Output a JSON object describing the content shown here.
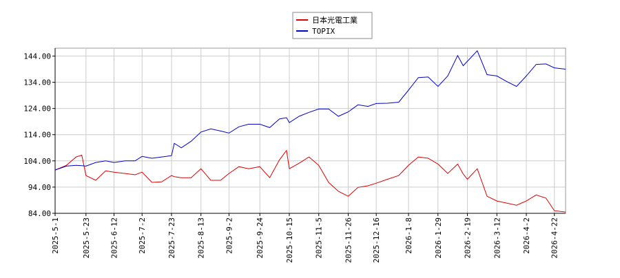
{
  "chart_data": {
    "type": "line",
    "x": [
      "2025-5-1",
      "2025-5-9",
      "2025-5-16",
      "2025-5-20",
      "2025-5-23",
      "2025-5-30",
      "2025-6-6",
      "2025-6-12",
      "2025-6-20",
      "2025-6-27",
      "2025-7-2",
      "2025-7-9",
      "2025-7-16",
      "2025-7-23",
      "2025-7-25",
      "2025-7-30",
      "2025-8-6",
      "2025-8-13",
      "2025-8-20",
      "2025-8-27",
      "2025-9-2",
      "2025-9-9",
      "2025-9-16",
      "2025-9-24",
      "2025-10-1",
      "2025-10-8",
      "2025-10-13",
      "2025-10-15",
      "2025-10-22",
      "2025-10-29",
      "2025-11-5",
      "2025-11-12",
      "2025-11-19",
      "2025-11-26",
      "2025-12-3",
      "2025-12-10",
      "2025-12-16",
      "2025-12-24",
      "2026-1-1",
      "2026-1-8",
      "2026-1-15",
      "2026-1-22",
      "2026-1-29",
      "2026-2-5",
      "2026-2-12",
      "2026-2-16",
      "2026-2-19",
      "2026-2-26",
      "2026-3-5",
      "2026-3-12",
      "2026-3-19",
      "2026-3-26",
      "2026-4-2",
      "2026-4-9",
      "2026-4-16",
      "2026-4-22",
      "2026-4-30"
    ],
    "series": [
      {
        "name": "日本光電工業",
        "color": "#dd0000",
        "values": [
          100.5,
          102.3,
          105.5,
          106.2,
          98.4,
          96.6,
          100.2,
          99.7,
          99.2,
          98.7,
          99.7,
          95.8,
          96,
          98.4,
          98,
          97.6,
          97.6,
          101,
          96.6,
          96.6,
          99.2,
          101.8,
          101,
          101.8,
          97.6,
          104.4,
          108,
          101,
          103.1,
          105.5,
          102.3,
          95.8,
          92.4,
          90.5,
          93.9,
          94.5,
          95.5,
          97,
          98.4,
          102.3,
          105.5,
          105,
          102.8,
          99.2,
          102.8,
          99,
          97,
          101,
          90.5,
          88.7,
          87.9,
          87.1,
          88.7,
          91,
          89.8,
          85,
          84.5
        ]
      },
      {
        "name": "TOPIX",
        "color": "#0000cc",
        "values": [
          100.5,
          102,
          102.3,
          102.2,
          102,
          103.4,
          104,
          103.4,
          104,
          104,
          105.7,
          105,
          105.5,
          106,
          110.7,
          109,
          111.5,
          115,
          116.2,
          115.4,
          114.6,
          117,
          118,
          118,
          116.7,
          120,
          120.5,
          118.6,
          121,
          122.5,
          123.8,
          123.8,
          121,
          122.7,
          125.4,
          124.8,
          125.9,
          126,
          126.4,
          131,
          135.8,
          136,
          132.4,
          136.4,
          144.2,
          140.3,
          142,
          146,
          136.9,
          136.4,
          134.3,
          132.4,
          136.4,
          140.8,
          141,
          139.5,
          139
        ]
      }
    ],
    "xlim": [
      "2025-5-1",
      "2026-4-30"
    ],
    "xticks": [
      "2025-5-1",
      "2025-5-23",
      "2025-6-12",
      "2025-7-2",
      "2025-7-23",
      "2025-8-13",
      "2025-9-2",
      "2025-9-24",
      "2025-10-15",
      "2025-11-5",
      "2025-11-26",
      "2025-12-16",
      "2026-1-8",
      "2026-1-29",
      "2026-2-19",
      "2026-3-12",
      "2026-4-2",
      "2026-4-22"
    ],
    "ylim": [
      84,
      147
    ],
    "yticks": [
      {
        "value": 84,
        "label": "84.00"
      },
      {
        "value": 94,
        "label": "94.00"
      },
      {
        "value": 104,
        "label": "104.00"
      },
      {
        "value": 114,
        "label": "114.00"
      },
      {
        "value": 124,
        "label": "124.00"
      },
      {
        "value": 134,
        "label": "134.00"
      },
      {
        "value": 144,
        "label": "144.00"
      }
    ],
    "grid": true,
    "legend": "top"
  }
}
